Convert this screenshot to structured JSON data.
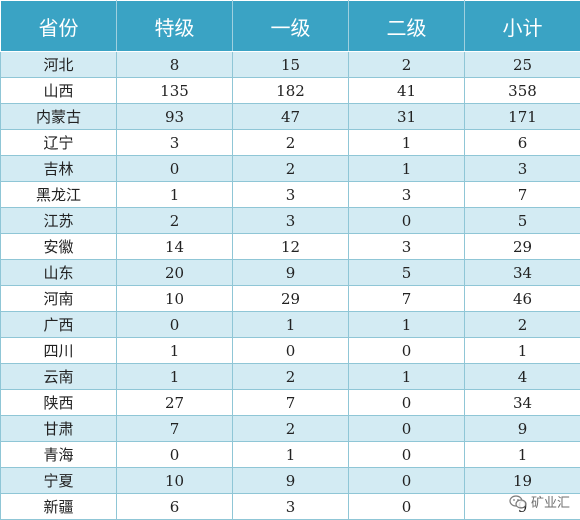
{
  "table": {
    "headers": [
      "省份",
      "特级",
      "一级",
      "二级",
      "小计"
    ],
    "rows": [
      [
        "河北",
        "8",
        "15",
        "2",
        "25"
      ],
      [
        "山西",
        "135",
        "182",
        "41",
        "358"
      ],
      [
        "内蒙古",
        "93",
        "47",
        "31",
        "171"
      ],
      [
        "辽宁",
        "3",
        "2",
        "1",
        "6"
      ],
      [
        "吉林",
        "0",
        "2",
        "1",
        "3"
      ],
      [
        "黑龙江",
        "1",
        "3",
        "3",
        "7"
      ],
      [
        "江苏",
        "2",
        "3",
        "0",
        "5"
      ],
      [
        "安徽",
        "14",
        "12",
        "3",
        "29"
      ],
      [
        "山东",
        "20",
        "9",
        "5",
        "34"
      ],
      [
        "河南",
        "10",
        "29",
        "7",
        "46"
      ],
      [
        "广西",
        "0",
        "1",
        "1",
        "2"
      ],
      [
        "四川",
        "1",
        "0",
        "0",
        "1"
      ],
      [
        "云南",
        "1",
        "2",
        "1",
        "4"
      ],
      [
        "陕西",
        "27",
        "7",
        "0",
        "34"
      ],
      [
        "甘肃",
        "7",
        "2",
        "0",
        "9"
      ],
      [
        "青海",
        "0",
        "1",
        "0",
        "1"
      ],
      [
        "宁夏",
        "10",
        "9",
        "0",
        "19"
      ],
      [
        "新疆",
        "6",
        "3",
        "0",
        "9"
      ]
    ]
  },
  "watermark": {
    "text": "矿业汇",
    "icon": "wechat-icon"
  }
}
